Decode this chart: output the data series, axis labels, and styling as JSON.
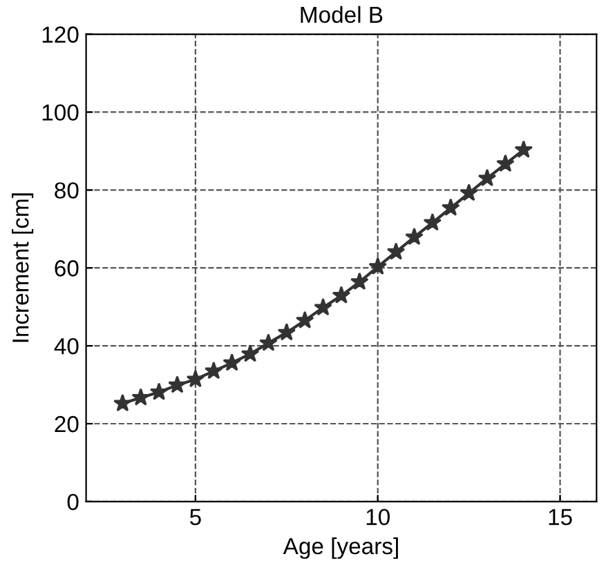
{
  "chart_data": {
    "type": "line",
    "title": "Model B",
    "xlabel": "Age [years]",
    "ylabel": "Increment [cm]",
    "x": [
      3,
      3.5,
      4,
      4.5,
      5,
      5.5,
      6,
      6.5,
      7,
      7.5,
      8,
      8.5,
      9,
      9.5,
      10,
      10.5,
      11,
      11.5,
      12,
      12.5,
      13,
      13.5,
      14
    ],
    "series": [
      {
        "color": "#333333",
        "values": [
          25.2,
          26.7,
          28.1,
          29.9,
          31.4,
          33.5,
          35.6,
          37.9,
          40.7,
          43.4,
          46.5,
          49.8,
          52.9,
          56.4,
          60.3,
          64.1,
          67.9,
          71.6,
          75.4,
          79.2,
          83.0,
          86.7,
          90.3
        ]
      }
    ],
    "xlim": [
      2,
      16
    ],
    "xticks": [
      5,
      10,
      15
    ],
    "ylim": [
      0,
      120
    ],
    "yticks": [
      0,
      20,
      40,
      60,
      80,
      100,
      120
    ],
    "grid": true,
    "marker": "star",
    "line_style": "solid"
  }
}
